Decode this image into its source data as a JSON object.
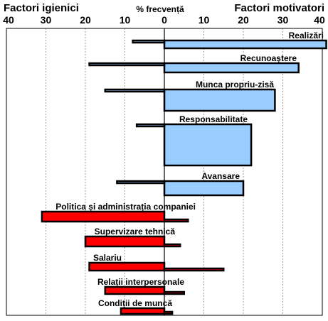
{
  "chart_data": {
    "type": "bar",
    "title": "% frecvență",
    "left_header": "Factori igienici",
    "right_header": "Factori motivatori",
    "xlim": [
      -40,
      40
    ],
    "x_ticks": [
      {
        "value": -40,
        "label": "40"
      },
      {
        "value": -30,
        "label": "30"
      },
      {
        "value": -20,
        "label": "20"
      },
      {
        "value": -10,
        "label": "10"
      },
      {
        "value": 0,
        "label": "0"
      },
      {
        "value": 10,
        "label": "10"
      },
      {
        "value": 20,
        "label": "20"
      },
      {
        "value": 30,
        "label": "30"
      },
      {
        "value": 40,
        "label": "40"
      }
    ],
    "grid": "vertical",
    "colors": {
      "motivator": "#99ccff",
      "hygiene": "#ff0000",
      "outline": "#000000"
    },
    "series": [
      {
        "name": "Factori igienici",
        "values": [
          8,
          19,
          15,
          7,
          12,
          31,
          20,
          19,
          15,
          11
        ]
      },
      {
        "name": "Factori motivatori",
        "values": [
          41,
          34,
          28,
          22,
          20,
          6,
          4,
          15,
          5,
          2
        ]
      }
    ],
    "categories": [
      {
        "label": "Realizări",
        "group": "motivator"
      },
      {
        "label": "Recunoaștere",
        "group": "motivator"
      },
      {
        "label": "Munca propriu-zisă",
        "group": "motivator"
      },
      {
        "label": "Responsabilitate",
        "group": "motivator"
      },
      {
        "label": "Avansare",
        "group": "motivator"
      },
      {
        "label": "Politica și administrația companiei",
        "group": "hygiene"
      },
      {
        "label": "Supervizare tehnică",
        "group": "hygiene"
      },
      {
        "label": "Salariu",
        "group": "hygiene"
      },
      {
        "label": "Relații interpersonale",
        "group": "hygiene"
      },
      {
        "label": "Condiții de muncă",
        "group": "hygiene"
      }
    ]
  }
}
